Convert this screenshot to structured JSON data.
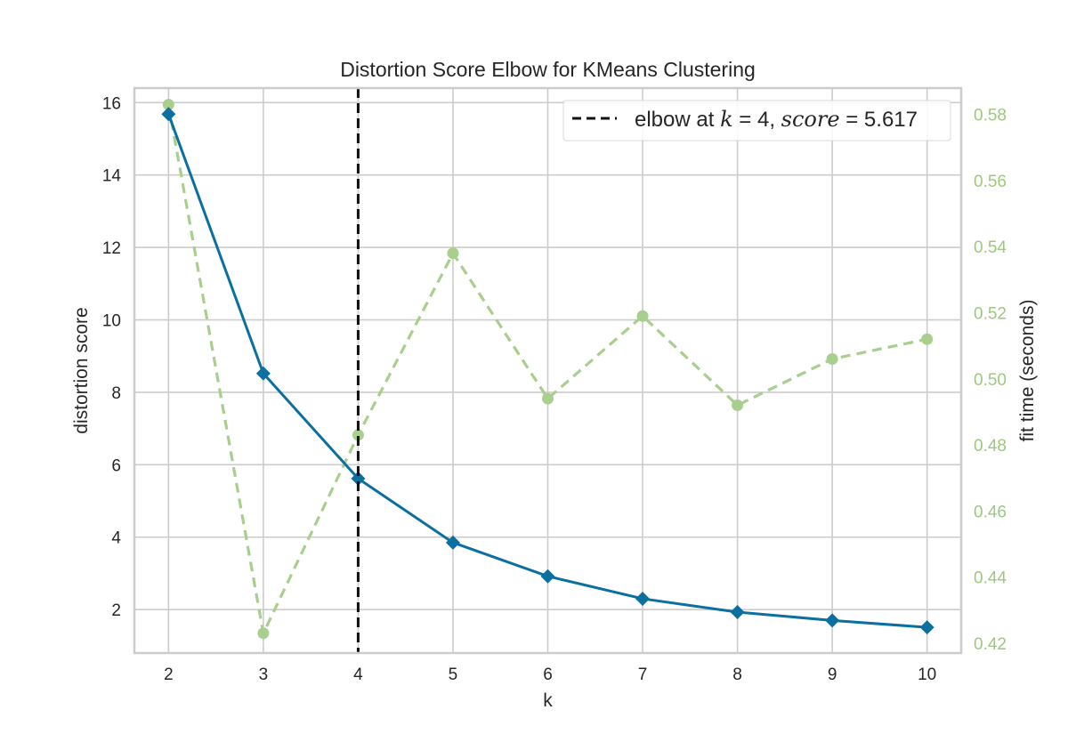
{
  "chart_data": {
    "type": "line",
    "title": "Distortion Score Elbow for KMeans Clustering",
    "xlabel": "k",
    "ylabel": "distortion score",
    "y2label": "fit time (seconds)",
    "x": [
      2,
      3,
      4,
      5,
      6,
      7,
      8,
      9,
      10
    ],
    "xlim": [
      1.64,
      10.36
    ],
    "ylim": [
      0.8,
      16.4
    ],
    "y2lim": [
      0.417,
      0.588
    ],
    "xticks": [
      "2",
      "3",
      "4",
      "5",
      "6",
      "7",
      "8",
      "9",
      "10"
    ],
    "yticks": [
      "2",
      "4",
      "6",
      "8",
      "10",
      "12",
      "14",
      "16"
    ],
    "y2ticks": [
      "0.42",
      "0.44",
      "0.46",
      "0.48",
      "0.50",
      "0.52",
      "0.54",
      "0.56",
      "0.58"
    ],
    "grid": true,
    "series": [
      {
        "values": [
          15.68,
          8.52,
          5.617,
          3.85,
          2.92,
          2.3,
          1.93,
          1.7,
          1.51
        ],
        "axis": "left",
        "color": "#0b6fa0",
        "style": "solid",
        "marker": "diamond"
      },
      {
        "values": [
          0.583,
          0.423,
          0.483,
          0.538,
          0.494,
          0.519,
          0.492,
          0.506,
          0.512
        ],
        "axis": "right",
        "color": "#a9cf8f",
        "style": "dashed",
        "marker": "circle"
      }
    ],
    "elbow": {
      "k": 4,
      "score": 5.617
    },
    "legend": {
      "position": "top-right",
      "prefix": "elbow at ",
      "k_symbol": "k",
      "equals": " = ",
      "k_value": "4",
      "separator": ", ",
      "score_symbol": "score",
      "score_value": "5.617"
    },
    "colors": {
      "left_axis_text": "#262626",
      "right_axis_text": "#9dc87f",
      "grid": "#cccccc",
      "frame": "#cccccc",
      "elbow_line": "#111111"
    }
  }
}
